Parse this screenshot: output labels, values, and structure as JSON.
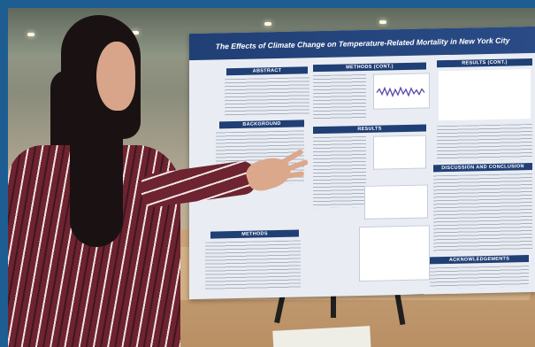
{
  "poster": {
    "title": "The Effects of Climate Change on Temperature-Related Mortality in New York City",
    "sections": {
      "abstract": "ABSTRACT",
      "background": "BACKGROUND",
      "methods": "METHODS",
      "methods_cont": "METHODS (CONT.)",
      "results": "RESULTS",
      "results_cont": "RESULTS (CONT.)",
      "discussion": "DISCUSSION AND CONCLUSION",
      "acknowledgements": "ACKNOWLEDGEMENTS"
    }
  },
  "colors": {
    "frame": "#1d5d91",
    "poster_navy": "#203f75",
    "poster_bg": "#e9edf3",
    "shirt": "#6d2330"
  }
}
